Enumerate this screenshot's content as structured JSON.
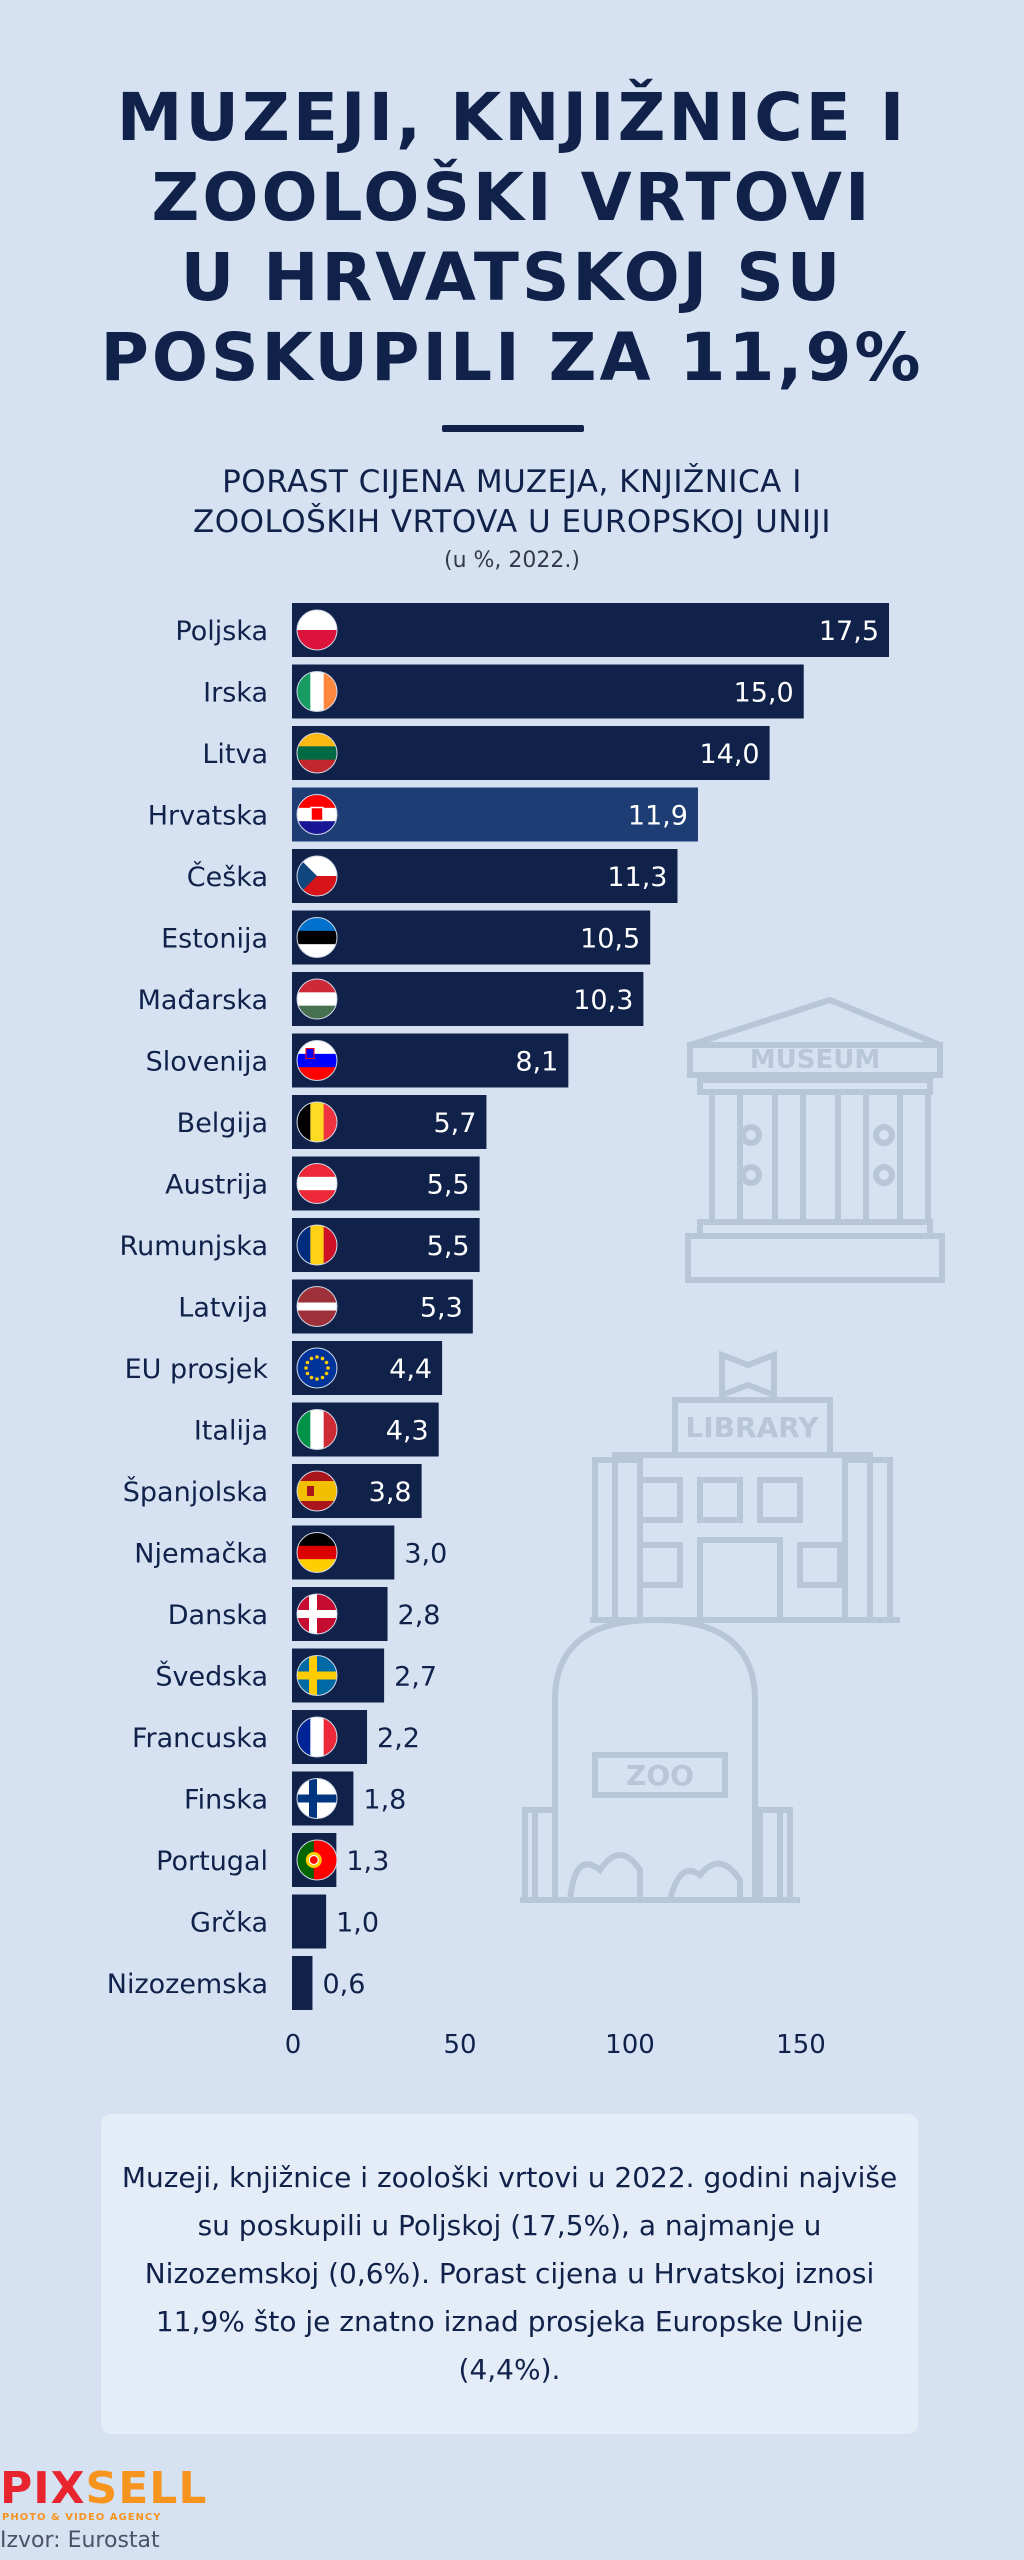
{
  "title_lines": [
    "MUZEJI, KNJIŽNICE I",
    "ZOOLOŠKI VRTOVI",
    "U HRVATSKOJ SU",
    "POSKUPILI ZA 11,9%"
  ],
  "subtitle_lines": [
    "PORAST CIJENA MUZEJA, KNJIŽNICA I",
    "ZOOLOŠKIH VRTOVA U EUROPSKOJ UNIJI"
  ],
  "unit_note": "(u %, 2022.)",
  "colors": {
    "bar": "#10214a",
    "highlight_bar": "#1e3d75",
    "background": "#d6e2f1",
    "illustration": "#b8c6d9"
  },
  "illustration_labels": {
    "museum": "MUSEUM",
    "library": "LIBRARY",
    "zoo": "ZOO"
  },
  "chart_data": {
    "type": "bar",
    "orientation": "horizontal",
    "categories": [
      "Poljska",
      "Irska",
      "Litva",
      "Hrvatska",
      "Češka",
      "Estonija",
      "Mađarska",
      "Slovenija",
      "Belgija",
      "Austrija",
      "Rumunjska",
      "Latvija",
      "EU prosjek",
      "Italija",
      "Španjolska",
      "Njemačka",
      "Danska",
      "Švedska",
      "Francuska",
      "Finska",
      "Portugal",
      "Grčka",
      "Nizozemska"
    ],
    "values": [
      17.5,
      15.0,
      14.0,
      11.9,
      11.3,
      10.5,
      10.3,
      8.1,
      5.7,
      5.5,
      5.5,
      5.3,
      4.4,
      4.3,
      3.8,
      3.0,
      2.8,
      2.7,
      2.2,
      1.8,
      1.3,
      1.0,
      0.6
    ],
    "value_labels": [
      "17,5",
      "15,0",
      "14,0",
      "11,9",
      "11,3",
      "10,5",
      "10,3",
      "8,1",
      "5,7",
      "5,5",
      "5,5",
      "5,3",
      "4,4",
      "4,3",
      "3,8",
      "3,0",
      "2,8",
      "2,7",
      "2,2",
      "1,8",
      "1,3",
      "1,0",
      "0,6"
    ],
    "flags": [
      "poland-flag-icon",
      "ireland-flag-icon",
      "lithuania-flag-icon",
      "croatia-flag-icon",
      "czechia-flag-icon",
      "estonia-flag-icon",
      "hungary-flag-icon",
      "slovenia-flag-icon",
      "belgium-flag-icon",
      "austria-flag-icon",
      "romania-flag-icon",
      "latvia-flag-icon",
      "eu-flag-icon",
      "italy-flag-icon",
      "spain-flag-icon",
      "germany-flag-icon",
      "denmark-flag-icon",
      "sweden-flag-icon",
      "france-flag-icon",
      "finland-flag-icon",
      "portugal-flag-icon",
      "",
      ""
    ],
    "highlight": "Hrvatska",
    "x_ticks": [
      "0",
      "50",
      "100",
      "150"
    ],
    "xlim": [
      0,
      17.5
    ],
    "grid": false
  },
  "note_text": "Muzeji, knjižnice i zoološki vrtovi u 2022. godini najviše su poskupili u Poljskoj (17,5%), a najmanje u Nizozemskoj (0,6%). Porast cijena u Hrvatskoj iznosi 11,9% što je znatno iznad prosjeka Europske Unije (4,4%).",
  "logo": {
    "part1": "PIX",
    "part2": "SELL",
    "tagline": "PHOTO & VIDEO AGENCY"
  },
  "source": "Izvor: Eurostat"
}
